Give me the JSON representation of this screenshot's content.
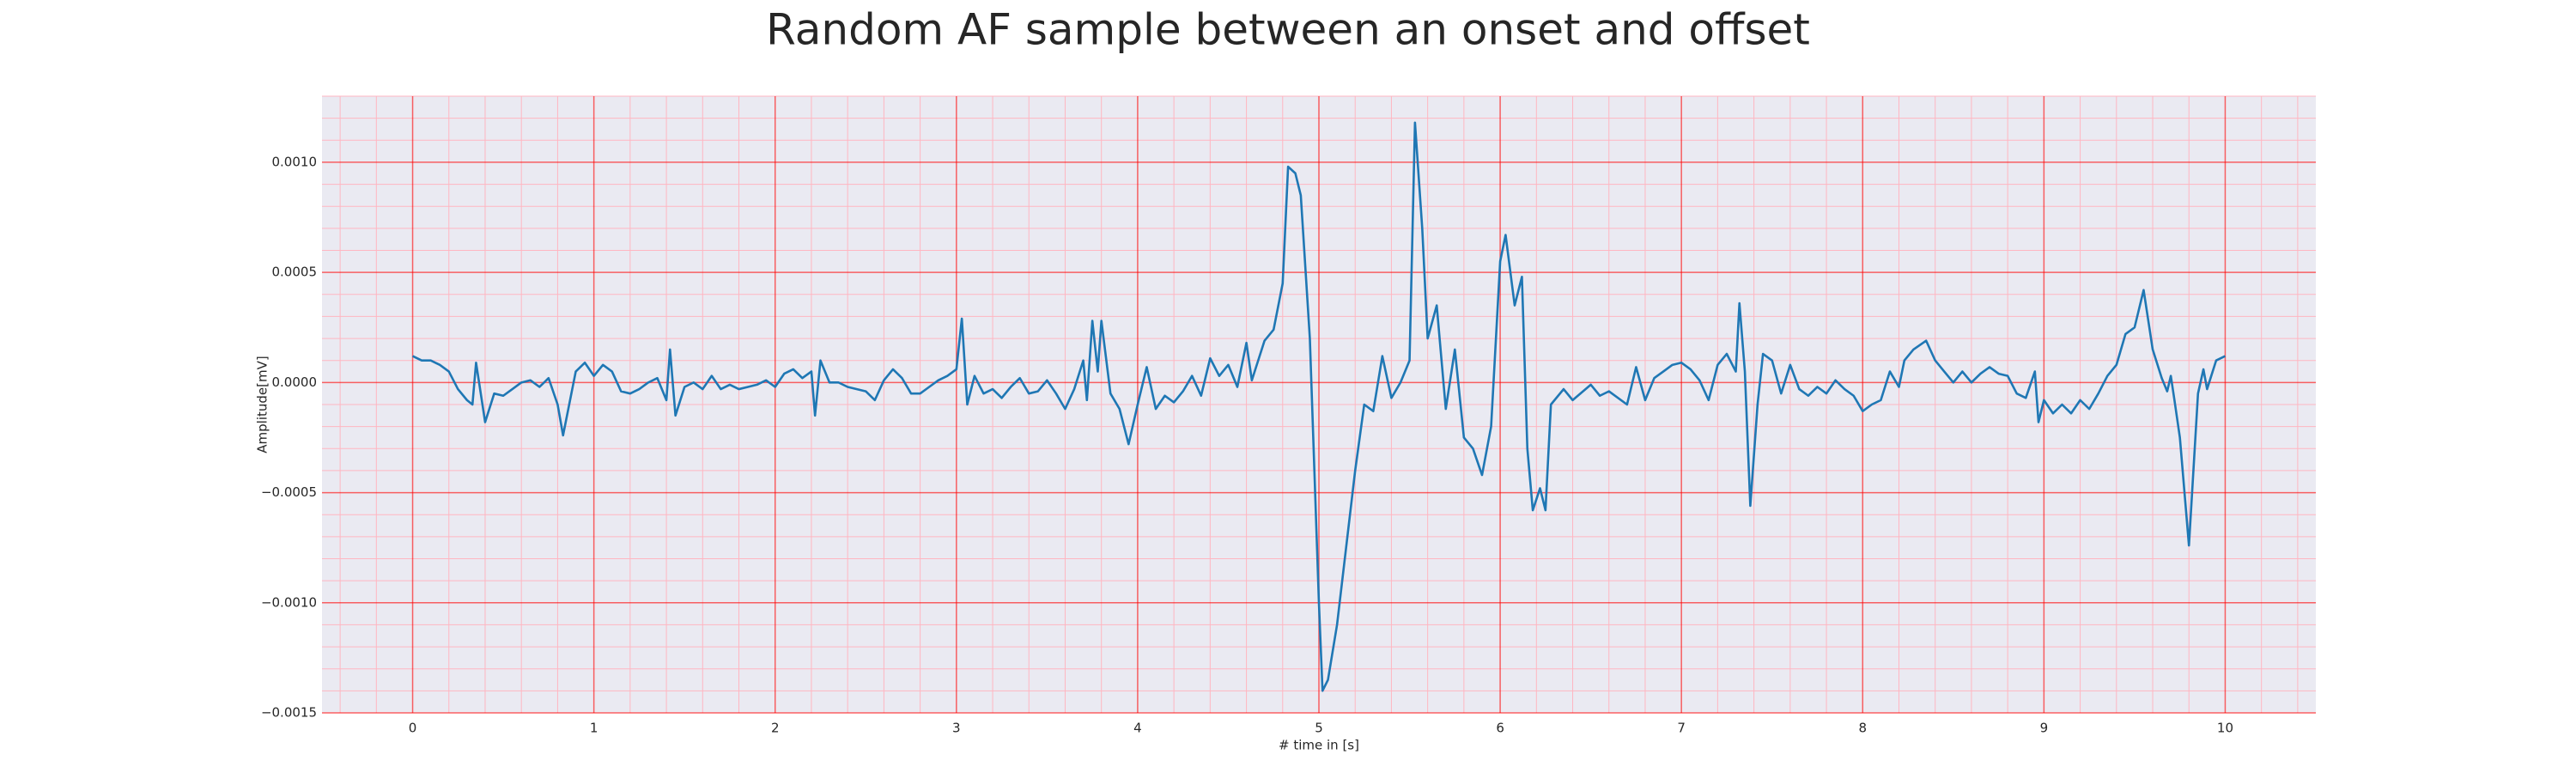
{
  "chart_data": {
    "type": "line",
    "title": "Random AF sample between an onset and offset",
    "xlabel": "# time in [s]",
    "ylabel": "Amplitude[mV]",
    "x": [
      0,
      0.05,
      0.1,
      0.15,
      0.2,
      0.25,
      0.3,
      0.33,
      0.35,
      0.4,
      0.45,
      0.5,
      0.55,
      0.6,
      0.65,
      0.7,
      0.75,
      0.8,
      0.83,
      0.9,
      0.95,
      1.0,
      1.05,
      1.1,
      1.15,
      1.2,
      1.25,
      1.3,
      1.35,
      1.4,
      1.42,
      1.45,
      1.5,
      1.55,
      1.6,
      1.65,
      1.7,
      1.75,
      1.8,
      1.85,
      1.9,
      1.95,
      2.0,
      2.05,
      2.1,
      2.15,
      2.2,
      2.22,
      2.25,
      2.3,
      2.35,
      2.4,
      2.5,
      2.55,
      2.6,
      2.65,
      2.7,
      2.75,
      2.8,
      2.85,
      2.9,
      2.95,
      3.0,
      3.03,
      3.06,
      3.1,
      3.15,
      3.2,
      3.25,
      3.3,
      3.35,
      3.4,
      3.45,
      3.5,
      3.55,
      3.6,
      3.65,
      3.7,
      3.72,
      3.75,
      3.78,
      3.8,
      3.85,
      3.9,
      3.95,
      4.0,
      4.05,
      4.1,
      4.15,
      4.2,
      4.25,
      4.3,
      4.35,
      4.4,
      4.45,
      4.5,
      4.55,
      4.6,
      4.63,
      4.7,
      4.75,
      4.8,
      4.83,
      4.87,
      4.9,
      4.95,
      5.0,
      5.02,
      5.05,
      5.1,
      5.15,
      5.2,
      5.25,
      5.3,
      5.35,
      5.4,
      5.45,
      5.5,
      5.53,
      5.57,
      5.6,
      5.65,
      5.7,
      5.75,
      5.8,
      5.85,
      5.9,
      5.95,
      6.0,
      6.03,
      6.08,
      6.12,
      6.15,
      6.18,
      6.22,
      6.25,
      6.28,
      6.35,
      6.4,
      6.5,
      6.55,
      6.6,
      6.7,
      6.75,
      6.8,
      6.85,
      6.9,
      6.95,
      7.0,
      7.05,
      7.1,
      7.15,
      7.2,
      7.25,
      7.3,
      7.32,
      7.35,
      7.38,
      7.42,
      7.45,
      7.5,
      7.55,
      7.6,
      7.65,
      7.7,
      7.75,
      7.8,
      7.85,
      7.9,
      7.95,
      8.0,
      8.05,
      8.1,
      8.15,
      8.2,
      8.23,
      8.28,
      8.35,
      8.4,
      8.45,
      8.5,
      8.55,
      8.6,
      8.65,
      8.7,
      8.75,
      8.8,
      8.85,
      8.9,
      8.95,
      8.97,
      9.0,
      9.05,
      9.1,
      9.15,
      9.2,
      9.25,
      9.3,
      9.35,
      9.4,
      9.45,
      9.5,
      9.55,
      9.6,
      9.65,
      9.68,
      9.7,
      9.72,
      9.75,
      9.8,
      9.85,
      9.88,
      9.9,
      9.95,
      10.0
    ],
    "values": [
      0.00012,
      0.0001,
      0.0001,
      8e-05,
      5e-05,
      -3e-05,
      -8e-05,
      -0.0001,
      9e-05,
      -0.00018,
      -5e-05,
      -6e-05,
      -3e-05,
      0,
      1e-05,
      -2e-05,
      2e-05,
      -0.0001,
      -0.00024,
      5e-05,
      9e-05,
      3e-05,
      8e-05,
      5e-05,
      -4e-05,
      -5e-05,
      -3e-05,
      0,
      2e-05,
      -8e-05,
      0.00015,
      -0.00015,
      -2e-05,
      0,
      -3e-05,
      3e-05,
      -3e-05,
      -1e-05,
      -3e-05,
      -2e-05,
      -1e-05,
      1e-05,
      -2e-05,
      4e-05,
      6e-05,
      2e-05,
      5e-05,
      -0.00015,
      0.0001,
      0,
      0,
      -2e-05,
      -4e-05,
      -8e-05,
      1e-05,
      6e-05,
      2e-05,
      -5e-05,
      -5e-05,
      -2e-05,
      1e-05,
      3e-05,
      6e-05,
      0.00029,
      -0.0001,
      3e-05,
      -5e-05,
      -3e-05,
      -7e-05,
      -2e-05,
      2e-05,
      -5e-05,
      -4e-05,
      1e-05,
      -5e-05,
      -0.00012,
      -3e-05,
      0.0001,
      -8e-05,
      0.00028,
      5e-05,
      0.00028,
      -5e-05,
      -0.00012,
      -0.00028,
      -0.0001,
      7e-05,
      -0.00012,
      -6e-05,
      -9e-05,
      -4e-05,
      3e-05,
      -6e-05,
      0.00011,
      3e-05,
      8e-05,
      -2e-05,
      0.00018,
      1e-05,
      0.00019,
      0.00024,
      0.00045,
      0.00098,
      0.00095,
      0.00085,
      0.0002,
      -0.001,
      -0.0014,
      -0.00135,
      -0.0011,
      -0.00075,
      -0.0004,
      -0.0001,
      -0.00013,
      0.00012,
      -7e-05,
      0,
      0.0001,
      0.00118,
      0.0007,
      0.0002,
      0.00035,
      -0.00012,
      0.00015,
      -0.00025,
      -0.0003,
      -0.00042,
      -0.0002,
      0.00055,
      0.00067,
      0.00035,
      0.00048,
      -0.0003,
      -0.00058,
      -0.00048,
      -0.00058,
      -0.0001,
      -3e-05,
      -8e-05,
      -1e-05,
      -6e-05,
      -4e-05,
      -0.0001,
      7e-05,
      -8e-05,
      2e-05,
      5e-05,
      8e-05,
      9e-05,
      6e-05,
      1e-05,
      -8e-05,
      8e-05,
      0.00013,
      5e-05,
      0.00036,
      5e-05,
      -0.00056,
      -0.0001,
      0.00013,
      0.0001,
      -5e-05,
      8e-05,
      -3e-05,
      -6e-05,
      -2e-05,
      -5e-05,
      1e-05,
      -3e-05,
      -6e-05,
      -0.00013,
      -0.0001,
      -8e-05,
      5e-05,
      -2e-05,
      0.0001,
      0.00015,
      0.00019,
      0.0001,
      5e-05,
      0,
      5e-05,
      0,
      4e-05,
      7e-05,
      4e-05,
      3e-05,
      -5e-05,
      -7e-05,
      5e-05,
      -0.00018,
      -8e-05,
      -0.00014,
      -0.0001,
      -0.00014,
      -8e-05,
      -0.00012,
      -5e-05,
      3e-05,
      8e-05,
      0.00022,
      0.00025,
      0.00042,
      0.00015,
      2e-05,
      -4e-05,
      3e-05,
      -8e-05,
      -0.00025,
      -0.00074,
      -5e-05,
      6e-05,
      -3e-05,
      0.0001,
      0.00012
    ],
    "color": "#1f77b4",
    "xlim": [
      -0.5,
      10.5
    ],
    "xticks": [
      0,
      1,
      2,
      3,
      4,
      5,
      6,
      7,
      8,
      9,
      10
    ],
    "ylim": [
      -0.0015,
      0.0013
    ],
    "yticks": [
      {
        "value": -0.0015,
        "label": "−0.0015"
      },
      {
        "value": -0.001,
        "label": "−0.0010"
      },
      {
        "value": -0.0005,
        "label": "−0.0005"
      },
      {
        "value": 0,
        "label": "0.0000"
      },
      {
        "value": 0.0005,
        "label": "0.0005"
      },
      {
        "value": 0.001,
        "label": "0.0010"
      }
    ],
    "xminorticks": [
      -0.4,
      -0.2,
      0.2,
      0.4,
      0.6,
      0.8,
      1.2,
      1.4,
      1.6,
      1.8,
      2.2,
      2.4,
      2.6,
      2.8,
      3.2,
      3.4,
      3.6,
      3.8,
      4.2,
      4.4,
      4.6,
      4.8,
      5.2,
      5.4,
      5.6,
      5.8,
      6.2,
      6.4,
      6.6,
      6.8,
      7.2,
      7.4,
      7.6,
      7.8,
      8.2,
      8.4,
      8.6,
      8.8,
      9.2,
      9.4,
      9.6,
      9.8,
      10.2,
      10.4
    ],
    "yminorticks": [
      -0.0014,
      -0.0013,
      -0.0012,
      -0.0011,
      -0.0009,
      -0.0008,
      -0.0007,
      -0.0006,
      -0.0004,
      -0.0003,
      -0.0002,
      -0.0001,
      0.0001,
      0.0002,
      0.0003,
      0.0004,
      0.0006,
      0.0007,
      0.0008,
      0.0009,
      0.0011,
      0.0012,
      0.0013
    ],
    "grid": true,
    "grid_color": "#ff0000",
    "minor_grid_color": "#ffb6c1",
    "background": "#eaeaf2"
  }
}
